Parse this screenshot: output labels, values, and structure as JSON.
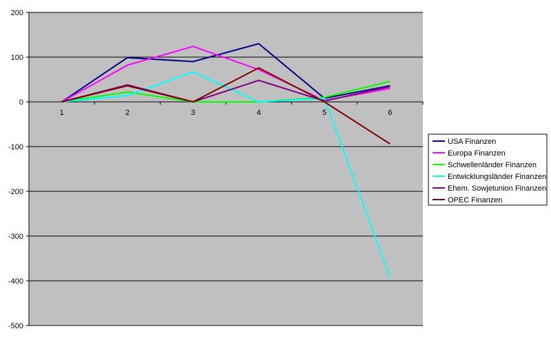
{
  "chart_data": {
    "type": "line",
    "title": "",
    "xlabel": "",
    "ylabel": "",
    "categories": [
      "1",
      "2",
      "3",
      "4",
      "5",
      "6"
    ],
    "ylim": [
      -500,
      200
    ],
    "yticks": [
      200,
      100,
      0,
      -100,
      -200,
      -300,
      -400,
      -500
    ],
    "grid": true,
    "legend_position": "right",
    "plot_background": "#c0c0c0",
    "series": [
      {
        "name": "USA Finanzen",
        "color": "#000080",
        "values": [
          0,
          99,
          90,
          130,
          8,
          36
        ]
      },
      {
        "name": "Europa Finanzen",
        "color": "#ff00ff",
        "values": [
          0,
          82,
          124,
          72,
          3,
          30
        ]
      },
      {
        "name": "Schwellenländer Finanzen",
        "color": "#00ff00",
        "values": [
          0,
          22,
          0,
          0,
          10,
          46
        ]
      },
      {
        "name": "Entwicklungsländer Finanzen",
        "color": "#00ffff",
        "values": [
          0,
          14,
          67,
          0,
          8,
          -392
        ]
      },
      {
        "name": "Ehem. Sowjetunion Finanzen",
        "color": "#800080",
        "values": [
          0,
          38,
          0,
          48,
          2,
          34
        ]
      },
      {
        "name": "OPEC Finanzen",
        "color": "#800000",
        "values": [
          0,
          36,
          0,
          76,
          0,
          -94
        ]
      }
    ]
  }
}
